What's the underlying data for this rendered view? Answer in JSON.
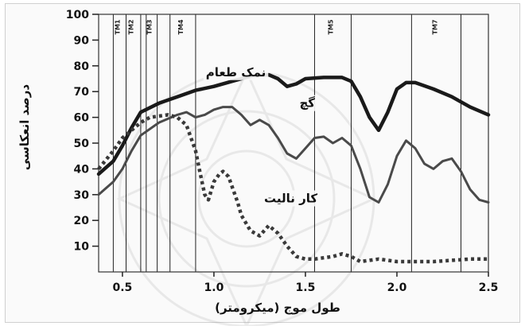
{
  "chart_data": {
    "type": "line",
    "xlabel": "طول موج (میکرومتر)",
    "ylabel": "درصد انعکاسی",
    "xlim": [
      0.37,
      2.5
    ],
    "ylim": [
      0,
      100
    ],
    "x_ticks": [
      0.5,
      1.0,
      1.5,
      2.0,
      2.5
    ],
    "x_tick_labels": [
      "0.5",
      "1.0",
      "1.5",
      "2.0",
      "2.5"
    ],
    "y_ticks": [
      10,
      20,
      30,
      40,
      50,
      60,
      70,
      80,
      90,
      100
    ],
    "y_tick_labels": [
      "10",
      "20",
      "30",
      "40",
      "50",
      "60",
      "70",
      "80",
      "90",
      "100"
    ],
    "band_lines": [
      0.45,
      0.52,
      0.6,
      0.63,
      0.69,
      0.76,
      0.9,
      1.55,
      1.75,
      2.08,
      2.35
    ],
    "band_labels": [
      {
        "text": "TM1",
        "x": 0.485
      },
      {
        "text": "TM2",
        "x": 0.56
      },
      {
        "text": "TM3",
        "x": 0.66
      },
      {
        "text": "TM4",
        "x": 0.83
      },
      {
        "text": "TM5",
        "x": 1.65
      },
      {
        "text": "TM7",
        "x": 2.22
      }
    ],
    "series": [
      {
        "name": "نمک طعام",
        "style": "solid-thick",
        "label_at": [
          1.12,
          76
        ],
        "points": [
          [
            0.37,
            38
          ],
          [
            0.45,
            43
          ],
          [
            0.5,
            49
          ],
          [
            0.55,
            56
          ],
          [
            0.6,
            62
          ],
          [
            0.7,
            65.5
          ],
          [
            0.8,
            68
          ],
          [
            0.9,
            70.5
          ],
          [
            1.0,
            72
          ],
          [
            1.1,
            74
          ],
          [
            1.2,
            76
          ],
          [
            1.3,
            76.5
          ],
          [
            1.35,
            75
          ],
          [
            1.4,
            72
          ],
          [
            1.45,
            73
          ],
          [
            1.5,
            75
          ],
          [
            1.6,
            75.5
          ],
          [
            1.7,
            75.5
          ],
          [
            1.75,
            74
          ],
          [
            1.8,
            68
          ],
          [
            1.85,
            60
          ],
          [
            1.9,
            55
          ],
          [
            1.95,
            62
          ],
          [
            2.0,
            71
          ],
          [
            2.05,
            73.5
          ],
          [
            2.1,
            73.5
          ],
          [
            2.2,
            71
          ],
          [
            2.3,
            68
          ],
          [
            2.4,
            64
          ],
          [
            2.5,
            61
          ]
        ]
      },
      {
        "name": "گچ",
        "style": "solid",
        "label_at": [
          1.51,
          64
        ],
        "points": [
          [
            0.37,
            30
          ],
          [
            0.45,
            35
          ],
          [
            0.5,
            40
          ],
          [
            0.55,
            47
          ],
          [
            0.6,
            53
          ],
          [
            0.7,
            58
          ],
          [
            0.8,
            61
          ],
          [
            0.85,
            62
          ],
          [
            0.9,
            60
          ],
          [
            0.95,
            61
          ],
          [
            1.0,
            63
          ],
          [
            1.05,
            64
          ],
          [
            1.1,
            64
          ],
          [
            1.15,
            61
          ],
          [
            1.2,
            57
          ],
          [
            1.25,
            59
          ],
          [
            1.3,
            57
          ],
          [
            1.35,
            52
          ],
          [
            1.4,
            46
          ],
          [
            1.45,
            44
          ],
          [
            1.5,
            48
          ],
          [
            1.55,
            52
          ],
          [
            1.6,
            52.5
          ],
          [
            1.65,
            50
          ],
          [
            1.7,
            52
          ],
          [
            1.75,
            49
          ],
          [
            1.8,
            40
          ],
          [
            1.85,
            29
          ],
          [
            1.9,
            27
          ],
          [
            1.95,
            34
          ],
          [
            2.0,
            45
          ],
          [
            2.05,
            51
          ],
          [
            2.1,
            48
          ],
          [
            2.15,
            42
          ],
          [
            2.2,
            40
          ],
          [
            2.25,
            43
          ],
          [
            2.3,
            44
          ],
          [
            2.35,
            39
          ],
          [
            2.4,
            32
          ],
          [
            2.45,
            28
          ],
          [
            2.5,
            27
          ]
        ]
      },
      {
        "name": "کار نالیت",
        "style": "dotted-thick",
        "label_at": [
          1.42,
          27
        ],
        "points": [
          [
            0.37,
            40
          ],
          [
            0.45,
            47
          ],
          [
            0.5,
            52
          ],
          [
            0.55,
            55
          ],
          [
            0.6,
            58
          ],
          [
            0.65,
            60
          ],
          [
            0.75,
            61
          ],
          [
            0.8,
            60
          ],
          [
            0.85,
            57
          ],
          [
            0.9,
            47
          ],
          [
            0.92,
            40
          ],
          [
            0.95,
            30
          ],
          [
            0.97,
            28
          ],
          [
            1.0,
            35
          ],
          [
            1.03,
            38
          ],
          [
            1.05,
            39
          ],
          [
            1.08,
            37
          ],
          [
            1.1,
            33
          ],
          [
            1.13,
            27
          ],
          [
            1.15,
            22
          ],
          [
            1.2,
            16
          ],
          [
            1.25,
            14
          ],
          [
            1.3,
            18
          ],
          [
            1.35,
            15
          ],
          [
            1.4,
            10
          ],
          [
            1.45,
            6
          ],
          [
            1.5,
            5
          ],
          [
            1.55,
            5
          ],
          [
            1.6,
            5.5
          ],
          [
            1.65,
            6
          ],
          [
            1.7,
            7
          ],
          [
            1.75,
            6
          ],
          [
            1.8,
            4
          ],
          [
            1.9,
            5
          ],
          [
            2.0,
            4
          ],
          [
            2.1,
            4
          ],
          [
            2.2,
            4
          ],
          [
            2.3,
            4.5
          ],
          [
            2.4,
            5
          ],
          [
            2.5,
            5
          ]
        ]
      }
    ],
    "grid": false,
    "legend": "none"
  }
}
